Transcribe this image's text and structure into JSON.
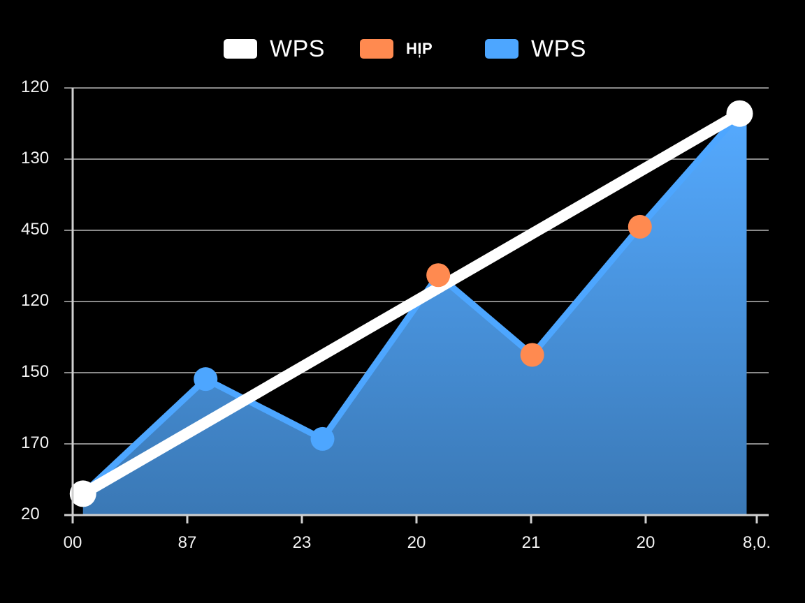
{
  "legend": {
    "items": [
      {
        "label": "WPS",
        "color": "#ffffff"
      },
      {
        "label": "HI̩P",
        "color": "#ff8a50"
      },
      {
        "label": "WPS",
        "color": "#4da6ff"
      }
    ]
  },
  "axes": {
    "y_ticks": [
      "120",
      "130",
      "450",
      "120",
      "150",
      "170",
      "20"
    ],
    "x_ticks": [
      "00",
      "87",
      "23",
      "20",
      "21",
      "20",
      "8,0."
    ]
  },
  "colors": {
    "background": "#000000",
    "grid": "#8a8a8a",
    "axis": "#d0d0d0",
    "line_white": "#ffffff",
    "accent_orange": "#ff8a50",
    "area_blue_top": "#55aaff",
    "area_blue_bottom": "#3a78b5",
    "area_stroke": "#4da6ff"
  },
  "chart_data": {
    "type": "line",
    "title": "",
    "xlabel": "",
    "ylabel": "",
    "categories": [
      "00",
      "87",
      "23",
      "20",
      "21",
      "20",
      "8,0."
    ],
    "y_tick_labels_top_to_bottom": [
      "120",
      "130",
      "450",
      "120",
      "150",
      "170",
      "20"
    ],
    "y_scale_note": "Tick labels are non-monotonic; values below expressed in gridline index units (0 = bottom '20' line, 6 = top '120' line).",
    "ylim": [
      0,
      6
    ],
    "grid": true,
    "legend_position": "top",
    "series": [
      {
        "name": "WPS",
        "style": "line",
        "color": "#ffffff",
        "points": [
          {
            "x": 0.09,
            "y": 0.3
          },
          {
            "x": 5.82,
            "y": 5.64
          }
        ]
      },
      {
        "name": "WPS",
        "style": "area",
        "color": "#4da6ff",
        "points": [
          {
            "x": 0.09,
            "y": 0.3
          },
          {
            "x": 1.16,
            "y": 1.91
          },
          {
            "x": 2.18,
            "y": 1.07
          },
          {
            "x": 3.19,
            "y": 3.37
          },
          {
            "x": 4.01,
            "y": 2.25
          },
          {
            "x": 4.95,
            "y": 4.05
          },
          {
            "x": 5.82,
            "y": 5.64
          }
        ]
      },
      {
        "name": "HI̩P",
        "style": "markers",
        "color": "#ff8a50",
        "points": [
          {
            "x": 3.19,
            "y": 3.37
          },
          {
            "x": 4.01,
            "y": 2.25
          },
          {
            "x": 4.95,
            "y": 4.05
          }
        ]
      }
    ]
  }
}
